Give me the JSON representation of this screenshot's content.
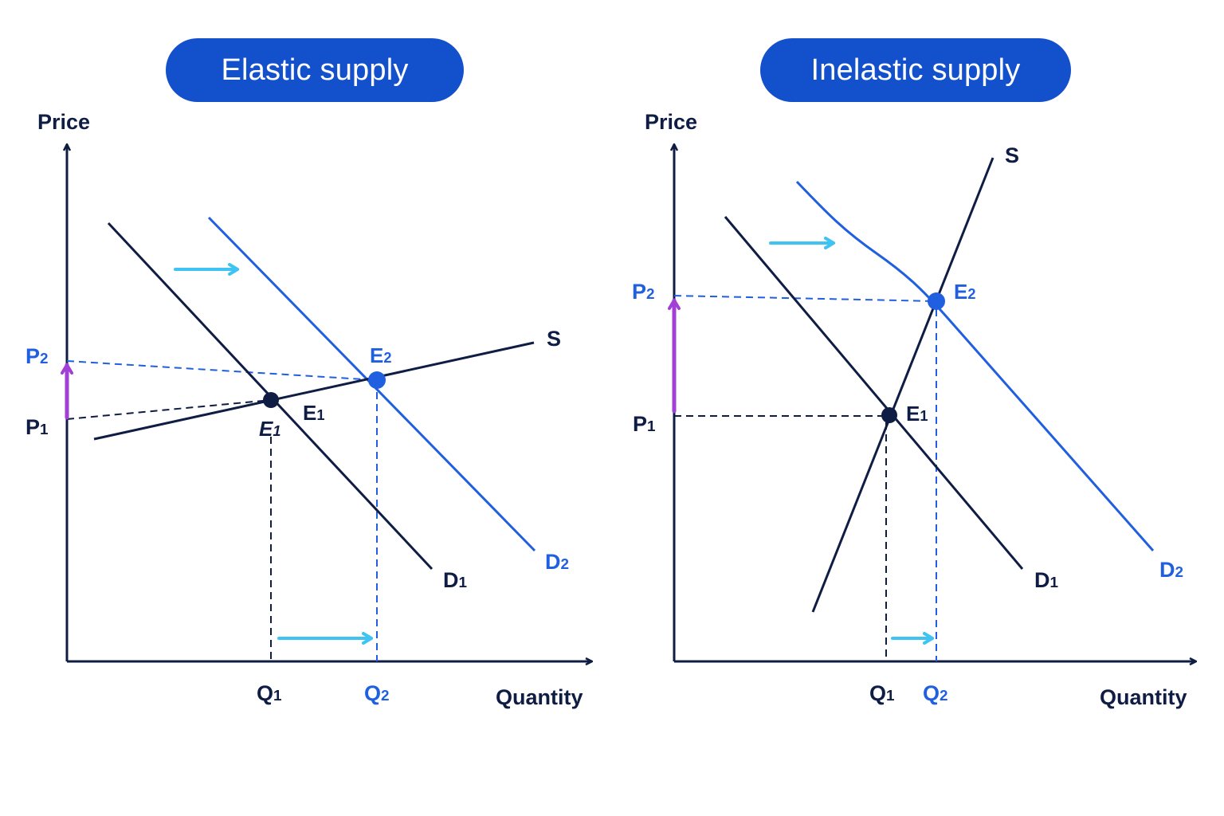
{
  "panels": {
    "elastic": {
      "title": "Elastic supply",
      "axis_y": "Price",
      "axis_x": "Quantity",
      "labels": {
        "S": "S",
        "D1": {
          "main": "D",
          "sub": "1"
        },
        "D2": {
          "main": "D",
          "sub": "2"
        },
        "E1": {
          "main": "E",
          "sub": "1"
        },
        "E1_dup": {
          "main": "E",
          "sub": "1"
        },
        "E2": {
          "main": "E",
          "sub": "2"
        },
        "P1": {
          "main": "P",
          "sub": "1"
        },
        "P2": {
          "main": "P",
          "sub": "2"
        },
        "Q1": {
          "main": "Q",
          "sub": "1"
        },
        "Q2": {
          "main": "Q",
          "sub": "2"
        }
      }
    },
    "inelastic": {
      "title": "Inelastic supply",
      "axis_y": "Price",
      "axis_x": "Quantity",
      "labels": {
        "S": "S",
        "D1": {
          "main": "D",
          "sub": "1"
        },
        "D2": {
          "main": "D",
          "sub": "2"
        },
        "E1": {
          "main": "E",
          "sub": "1"
        },
        "E2": {
          "main": "E",
          "sub": "2"
        },
        "P1": {
          "main": "P",
          "sub": "1"
        },
        "P2": {
          "main": "P",
          "sub": "2"
        },
        "Q1": {
          "main": "Q",
          "sub": "1"
        },
        "Q2": {
          "main": "Q",
          "sub": "2"
        }
      }
    }
  },
  "colors": {
    "dark_navy": "#0f1d45",
    "blue": "#1f5fe0",
    "pill_blue": "#1350cc",
    "cyan_arrow": "#3fc3f2",
    "purple_arrow": "#a23fd6"
  },
  "icons": {
    "shift_arrow": "right-arrow-icon",
    "price_rise_arrow": "up-arrow-icon"
  }
}
